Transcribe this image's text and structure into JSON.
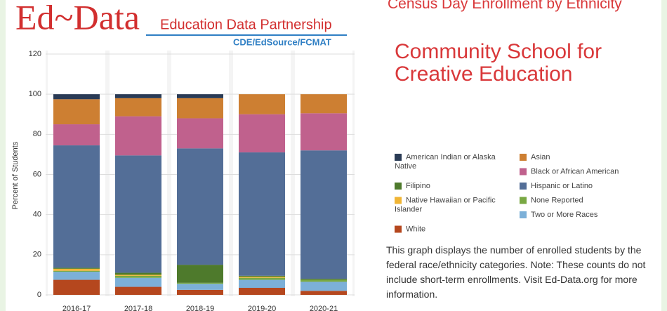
{
  "logo": {
    "name": "Ed~Data",
    "tagline": "Education Data Partnership",
    "partners": "CDE/EdSource/FCMAT"
  },
  "chart_data": {
    "type": "stacked-bar",
    "title": "Census Day Enrollment by Ethnicity",
    "subtitle": "Community School for Creative Education",
    "description": "This graph displays the number of enrolled students by the federal race/ethnicity categories. Note: These counts do not include short-term enrollments. Visit Ed-Data.org for more information.",
    "y_label": "Percent of Students",
    "categories": [
      "2016-17",
      "2017-18",
      "2018-19",
      "2019-20",
      "2020-21"
    ],
    "ylim": [
      0,
      120
    ],
    "yticks": [
      0,
      20,
      40,
      60,
      80,
      100,
      120
    ],
    "grid": true,
    "series": [
      {
        "name": "White",
        "color": "#b5471e",
        "values": [
          7.5,
          4,
          2.5,
          3.5,
          2
        ]
      },
      {
        "name": "Two or More Races",
        "color": "#7cb0d8",
        "values": [
          4,
          4.5,
          3,
          4,
          4.5
        ]
      },
      {
        "name": "None Reported",
        "color": "#79a843",
        "values": [
          0.5,
          1,
          0.5,
          1,
          1
        ]
      },
      {
        "name": "Native Hawaiian or Pacific Islander",
        "color": "#f0b535",
        "values": [
          1,
          0.5,
          0,
          0.5,
          0
        ]
      },
      {
        "name": "Filipino",
        "color": "#4e7a2c",
        "values": [
          0.5,
          1,
          9,
          0.5,
          0.5
        ]
      },
      {
        "name": "Hispanic or Latino",
        "color": "#536e97",
        "values": [
          61,
          58.5,
          58,
          61.5,
          64
        ]
      },
      {
        "name": "Black or African American",
        "color": "#c0618d",
        "values": [
          10.5,
          19.5,
          15,
          19,
          18.5
        ]
      },
      {
        "name": "Asian",
        "color": "#cd7f32",
        "values": [
          12.5,
          9,
          10,
          10,
          9.5
        ]
      },
      {
        "name": "American Indian or Alaska Native",
        "color": "#2a3b55",
        "values": [
          2.5,
          2,
          2,
          0,
          0
        ]
      }
    ]
  }
}
